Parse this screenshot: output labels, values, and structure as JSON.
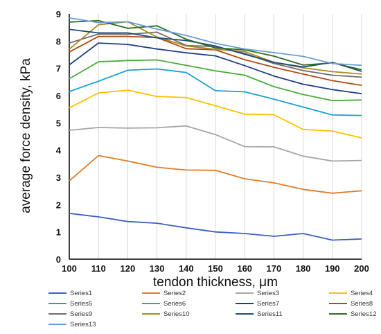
{
  "chart_data": {
    "type": "line",
    "xlabel": "tendon thickness, μm",
    "ylabel": "average force density, kPa",
    "xlim": [
      100,
      200
    ],
    "ylim": [
      0,
      9
    ],
    "x": [
      100,
      110,
      120,
      130,
      140,
      150,
      160,
      170,
      180,
      190,
      200
    ],
    "x_ticks": [
      "100",
      "110",
      "120",
      "130",
      "140",
      "150",
      "160",
      "170",
      "180",
      "190",
      "200"
    ],
    "y_ticks": [
      "0",
      "1",
      "2",
      "3",
      "4",
      "5",
      "6",
      "7",
      "8",
      "9"
    ],
    "grid": "vertical",
    "legend_position": "bottom",
    "series": [
      {
        "name": "Series1",
        "color": "#3a5fc4",
        "values": [
          1.68,
          1.55,
          1.38,
          1.32,
          1.15,
          1.0,
          0.94,
          0.84,
          0.94,
          0.7,
          0.74
        ]
      },
      {
        "name": "Series2",
        "color": "#e07b28",
        "values": [
          2.87,
          3.8,
          3.6,
          3.37,
          3.27,
          3.26,
          2.95,
          2.8,
          2.56,
          2.42,
          2.51
        ]
      },
      {
        "name": "Series3",
        "color": "#a5a5a5",
        "values": [
          4.73,
          4.83,
          4.81,
          4.82,
          4.89,
          4.57,
          4.13,
          4.12,
          3.78,
          3.6,
          3.62
        ]
      },
      {
        "name": "Series4",
        "color": "#ffc000",
        "values": [
          5.55,
          6.1,
          6.2,
          5.97,
          5.93,
          5.63,
          5.32,
          5.3,
          4.76,
          4.7,
          4.45
        ]
      },
      {
        "name": "Series5",
        "color": "#1aa0d0",
        "values": [
          6.15,
          6.53,
          6.93,
          6.98,
          6.85,
          6.18,
          6.14,
          5.87,
          5.58,
          5.29,
          5.27
        ]
      },
      {
        "name": "Series6",
        "color": "#4aaa3c",
        "values": [
          6.62,
          7.24,
          7.29,
          7.31,
          7.11,
          6.91,
          6.75,
          6.33,
          6.04,
          5.82,
          5.84
        ]
      },
      {
        "name": "Series7",
        "color": "#1f3c88",
        "values": [
          7.13,
          7.93,
          7.88,
          7.71,
          7.57,
          7.46,
          7.1,
          6.72,
          6.42,
          6.22,
          6.07
        ]
      },
      {
        "name": "Series8",
        "color": "#b04a15",
        "values": [
          7.6,
          8.17,
          8.17,
          8.13,
          7.72,
          7.68,
          7.32,
          7.04,
          6.79,
          6.55,
          6.38
        ]
      },
      {
        "name": "Series9",
        "color": "#6e6e6e",
        "values": [
          7.93,
          8.26,
          8.25,
          8.33,
          7.84,
          7.8,
          7.55,
          7.18,
          6.92,
          6.75,
          6.68
        ]
      },
      {
        "name": "Series10",
        "color": "#a88c1c",
        "values": [
          7.7,
          8.6,
          8.71,
          8.15,
          7.82,
          7.7,
          7.62,
          7.22,
          7.02,
          6.88,
          6.79
        ]
      },
      {
        "name": "Series11",
        "color": "#1e4a7a",
        "values": [
          8.43,
          8.3,
          8.3,
          8.12,
          8.02,
          7.82,
          7.52,
          7.22,
          7.05,
          7.22,
          6.89
        ]
      },
      {
        "name": "Series12",
        "color": "#2e6b1f",
        "values": [
          8.7,
          8.75,
          8.47,
          8.56,
          8.07,
          7.75,
          7.68,
          7.45,
          7.12,
          7.2,
          6.95
        ]
      },
      {
        "name": "Series13",
        "color": "#6b9bd8",
        "values": [
          8.85,
          8.68,
          8.71,
          8.44,
          8.21,
          7.92,
          7.71,
          7.58,
          7.44,
          7.18,
          7.11
        ]
      }
    ]
  }
}
